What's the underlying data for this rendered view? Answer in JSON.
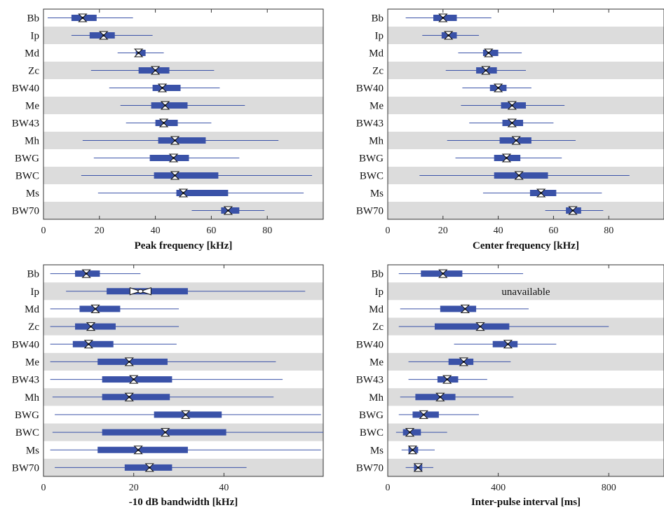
{
  "chart_data": [
    {
      "type": "boxplot",
      "xlabel": "Peak frequency [kHz]",
      "xlim": [
        0,
        100
      ],
      "xticks": [
        0,
        20,
        40,
        60,
        80
      ],
      "rows": [
        {
          "label": "Bb",
          "whisker_low": 1.5,
          "q1": 10,
          "median": 14,
          "q3": 19,
          "whisker_high": 32
        },
        {
          "label": "Ip",
          "whisker_low": 10,
          "q1": 16.5,
          "median": 21.5,
          "q3": 25.5,
          "whisker_high": 39
        },
        {
          "label": "Md",
          "whisker_low": 26.5,
          "q1": 33,
          "median": 34,
          "q3": 36.5,
          "whisker_high": 43
        },
        {
          "label": "Zc",
          "whisker_low": 17,
          "q1": 34,
          "median": 40,
          "q3": 45,
          "whisker_high": 61
        },
        {
          "label": "BW40",
          "whisker_low": 23.5,
          "q1": 39,
          "median": 42.5,
          "q3": 49,
          "whisker_high": 63
        },
        {
          "label": "Me",
          "whisker_low": 27.5,
          "q1": 38.5,
          "median": 43.5,
          "q3": 51.5,
          "whisker_high": 72
        },
        {
          "label": "BW43",
          "whisker_low": 29.5,
          "q1": 40,
          "median": 43,
          "q3": 48,
          "whisker_high": 60
        },
        {
          "label": "Mh",
          "whisker_low": 14,
          "q1": 41,
          "median": 47,
          "q3": 58,
          "whisker_high": 84
        },
        {
          "label": "BWG",
          "whisker_low": 18,
          "q1": 38,
          "median": 46.5,
          "q3": 52,
          "whisker_high": 70
        },
        {
          "label": "BWC",
          "whisker_low": 13.5,
          "q1": 39.5,
          "median": 47,
          "q3": 62.5,
          "whisker_high": 96
        },
        {
          "label": "Ms",
          "whisker_low": 19.5,
          "q1": 47.5,
          "median": 50,
          "q3": 66,
          "whisker_high": 93
        },
        {
          "label": "BW70",
          "whisker_low": 53,
          "q1": 63.5,
          "median": 66,
          "q3": 70,
          "whisker_high": 79
        }
      ]
    },
    {
      "type": "boxplot",
      "xlabel": "Center frequency [kHz]",
      "xlim": [
        0,
        100
      ],
      "xticks": [
        0,
        20,
        40,
        60,
        80
      ],
      "rows": [
        {
          "label": "Bb",
          "whisker_low": 6.5,
          "q1": 16.5,
          "median": 20,
          "q3": 25,
          "whisker_high": 37.5
        },
        {
          "label": "Ip",
          "whisker_low": 12.5,
          "q1": 19.5,
          "median": 22,
          "q3": 25,
          "whisker_high": 33
        },
        {
          "label": "Md",
          "whisker_low": 25.5,
          "q1": 34.5,
          "median": 36.5,
          "q3": 40,
          "whisker_high": 48.5
        },
        {
          "label": "Zc",
          "whisker_low": 21,
          "q1": 32,
          "median": 35.5,
          "q3": 39.5,
          "whisker_high": 50
        },
        {
          "label": "BW40",
          "whisker_low": 27,
          "q1": 37,
          "median": 40,
          "q3": 43,
          "whisker_high": 52
        },
        {
          "label": "Me",
          "whisker_low": 26.5,
          "q1": 41,
          "median": 45,
          "q3": 50,
          "whisker_high": 64
        },
        {
          "label": "BW43",
          "whisker_low": 29.5,
          "q1": 41.5,
          "median": 45,
          "q3": 49,
          "whisker_high": 60
        },
        {
          "label": "Mh",
          "whisker_low": 21.5,
          "q1": 40.5,
          "median": 46.5,
          "q3": 52,
          "whisker_high": 68
        },
        {
          "label": "BWG",
          "whisker_low": 24.5,
          "q1": 38.5,
          "median": 43,
          "q3": 48,
          "whisker_high": 63
        },
        {
          "label": "BWC",
          "whisker_low": 11.5,
          "q1": 38.5,
          "median": 47.5,
          "q3": 58,
          "whisker_high": 87.5
        },
        {
          "label": "Ms",
          "whisker_low": 34.5,
          "q1": 51.5,
          "median": 55.5,
          "q3": 61,
          "whisker_high": 77.5
        },
        {
          "label": "BW70",
          "whisker_low": 57,
          "q1": 64.5,
          "median": 67,
          "q3": 70,
          "whisker_high": 78
        }
      ]
    },
    {
      "type": "boxplot",
      "xlabel": "-10 dB bandwidth [kHz]",
      "xlim": [
        0,
        62
      ],
      "xticks": [
        0,
        20,
        40
      ],
      "rows": [
        {
          "label": "Bb",
          "whisker_low": 1.5,
          "q1": 7,
          "median": 9.5,
          "q3": 12.5,
          "whisker_high": 21.5
        },
        {
          "label": "Ip",
          "whisker_low": 5,
          "q1": 14,
          "median": 21.5,
          "q3": 32,
          "whisker_high": 58,
          "notch_style": "open"
        },
        {
          "label": "Md",
          "whisker_low": 1.5,
          "q1": 8,
          "median": 11.5,
          "q3": 17,
          "whisker_high": 30
        },
        {
          "label": "Zc",
          "whisker_low": 1.5,
          "q1": 7,
          "median": 10.5,
          "q3": 16,
          "whisker_high": 30
        },
        {
          "label": "BW40",
          "whisker_low": 1.5,
          "q1": 6.5,
          "median": 10,
          "q3": 15.5,
          "whisker_high": 29.5
        },
        {
          "label": "Me",
          "whisker_low": 1.5,
          "q1": 12,
          "median": 19,
          "q3": 27.5,
          "whisker_high": 51.5
        },
        {
          "label": "BW43",
          "whisker_low": 1.5,
          "q1": 13,
          "median": 20,
          "q3": 28.5,
          "whisker_high": 53
        },
        {
          "label": "Mh",
          "whisker_low": 2,
          "q1": 13,
          "median": 19,
          "q3": 28,
          "whisker_high": 51
        },
        {
          "label": "BWG",
          "whisker_low": 2.5,
          "q1": 24.5,
          "median": 31.5,
          "q3": 39.5,
          "whisker_high": 61.5
        },
        {
          "label": "BWC",
          "whisker_low": 2,
          "q1": 13,
          "median": 27,
          "q3": 40.5,
          "whisker_high": 62
        },
        {
          "label": "Ms",
          "whisker_low": 1.5,
          "q1": 12,
          "median": 21,
          "q3": 32,
          "whisker_high": 61.5
        },
        {
          "label": "BW70",
          "whisker_low": 2.5,
          "q1": 18,
          "median": 23.5,
          "q3": 28.5,
          "whisker_high": 45
        }
      ]
    },
    {
      "type": "boxplot",
      "xlabel": "Inter-pulse interval [ms]",
      "xlim": [
        0,
        1000
      ],
      "xticks": [
        0,
        400,
        800
      ],
      "rows": [
        {
          "label": "Bb",
          "whisker_low": 40,
          "q1": 120,
          "median": 200,
          "q3": 270,
          "whisker_high": 490
        },
        {
          "label": "Ip",
          "unavailable": true,
          "note": "unavailable"
        },
        {
          "label": "Md",
          "whisker_low": 45,
          "q1": 190,
          "median": 280,
          "q3": 320,
          "whisker_high": 510
        },
        {
          "label": "Zc",
          "whisker_low": 40,
          "q1": 170,
          "median": 335,
          "q3": 440,
          "whisker_high": 800
        },
        {
          "label": "BW40",
          "whisker_low": 240,
          "q1": 380,
          "median": 435,
          "q3": 470,
          "whisker_high": 610
        },
        {
          "label": "Me",
          "whisker_low": 75,
          "q1": 220,
          "median": 275,
          "q3": 310,
          "whisker_high": 445
        },
        {
          "label": "BW43",
          "whisker_low": 75,
          "q1": 180,
          "median": 215,
          "q3": 255,
          "whisker_high": 360
        },
        {
          "label": "Mh",
          "whisker_low": 45,
          "q1": 100,
          "median": 190,
          "q3": 245,
          "whisker_high": 455
        },
        {
          "label": "BWG",
          "whisker_low": 40,
          "q1": 90,
          "median": 130,
          "q3": 185,
          "whisker_high": 330
        },
        {
          "label": "BWC",
          "whisker_low": 30,
          "q1": 55,
          "median": 80,
          "q3": 120,
          "whisker_high": 215
        },
        {
          "label": "Ms",
          "whisker_low": 50,
          "q1": 75,
          "median": 90,
          "q3": 110,
          "whisker_high": 170
        },
        {
          "label": "BW70",
          "whisker_low": 65,
          "q1": 95,
          "median": 110,
          "q3": 125,
          "whisker_high": 165
        }
      ]
    }
  ],
  "colors": {
    "box": "#3a52a8",
    "whisker": "#3a52a8",
    "band": "#dcdcdc",
    "axis": "#333333",
    "median_marker": "#111111"
  }
}
